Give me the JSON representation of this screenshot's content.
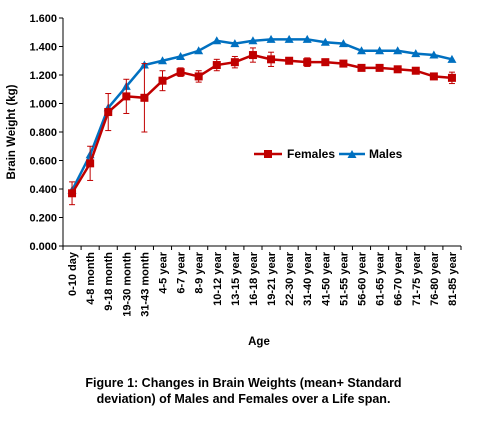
{
  "chart_data": {
    "type": "line",
    "xlabel": "Age",
    "ylabel": "Brain Weight (kg)",
    "ylim": [
      0,
      1.6
    ],
    "yticks": [
      "0.000",
      "0.200",
      "0.400",
      "0.600",
      "0.800",
      "1.000",
      "1.200",
      "1.400",
      "1.600"
    ],
    "legend_position": "center-right",
    "grid": false,
    "categories": [
      "0-10 day",
      "4-8 month",
      "9-18 month",
      "19-30 month",
      "31-43 month",
      "4-5 year",
      "6-7 year",
      "8-9 year",
      "10-12 year",
      "13-15 year",
      "16-18 year",
      "19-21 year",
      "22-30 year",
      "31-40 year",
      "41-50 year",
      "51-55 year",
      "56-60 year",
      "61-65 year",
      "66-70 year",
      "71-75 year",
      "76-80 year",
      "81-85 year"
    ],
    "series": [
      {
        "name": "Females",
        "color": "#c00000",
        "marker": "square",
        "values": [
          0.37,
          0.58,
          0.94,
          1.05,
          1.04,
          1.16,
          1.22,
          1.19,
          1.27,
          1.29,
          1.34,
          1.31,
          1.3,
          1.29,
          1.29,
          1.28,
          1.25,
          1.25,
          1.24,
          1.23,
          1.19,
          1.18
        ],
        "error": [
          0.08,
          0.12,
          0.13,
          0.12,
          0.24,
          0.07,
          0.03,
          0.04,
          0.04,
          0.04,
          0.05,
          0.05,
          0.02,
          0.03,
          0.02,
          0.02,
          0.01,
          0.01,
          0.02,
          0.02,
          0.02,
          0.04
        ]
      },
      {
        "name": "Males",
        "color": "#0070c0",
        "marker": "triangle",
        "values": [
          0.39,
          0.64,
          0.97,
          1.12,
          1.27,
          1.3,
          1.33,
          1.37,
          1.44,
          1.42,
          1.44,
          1.45,
          1.45,
          1.45,
          1.43,
          1.42,
          1.37,
          1.37,
          1.37,
          1.35,
          1.34,
          1.31
        ]
      }
    ]
  },
  "caption": {
    "line1": "Figure 1: Changes in Brain Weights (mean+ Standard",
    "line2": "deviation) of Males and Females over a Life span."
  }
}
